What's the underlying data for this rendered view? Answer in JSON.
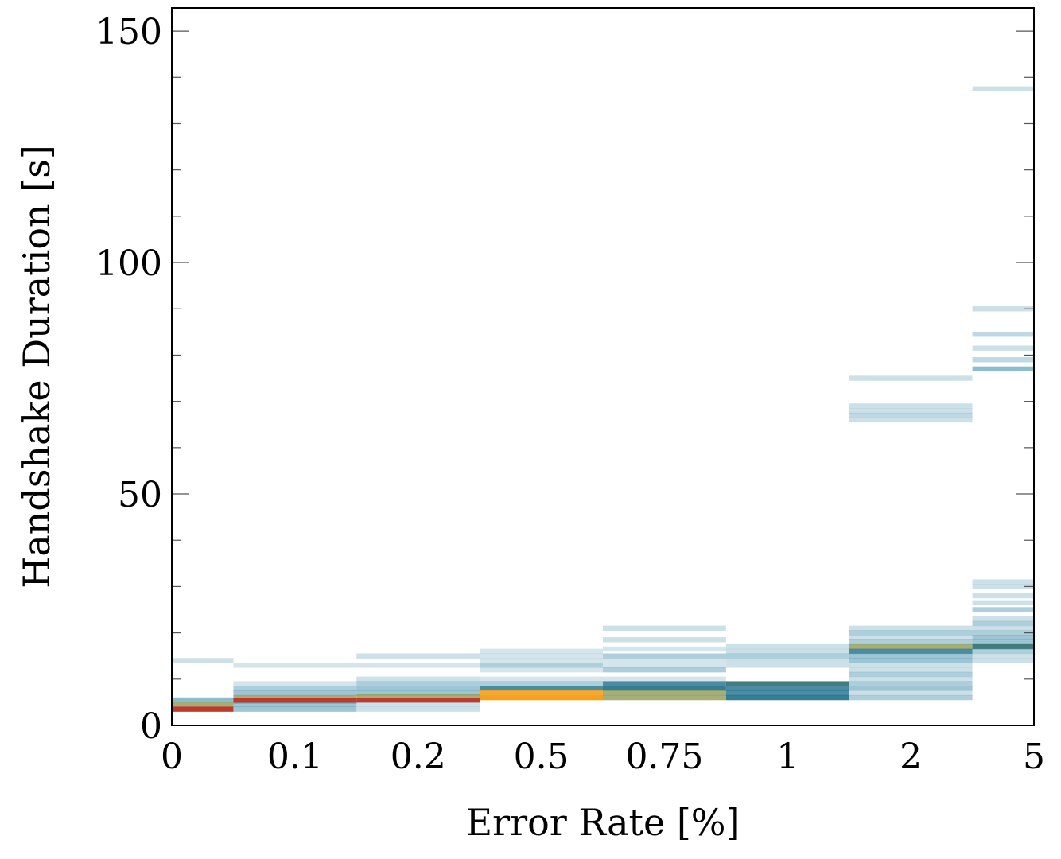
{
  "chart_data": {
    "type": "heatmap",
    "xlabel": "Error Rate [%]",
    "ylabel": "Handshake Duration [s]",
    "categories": [
      "0",
      "0.1",
      "0.2",
      "0.5",
      "0.75",
      "1",
      "2",
      "5"
    ],
    "ylim": [
      0,
      155
    ],
    "yticks": [
      0,
      50,
      100,
      150
    ],
    "grid": false,
    "colors": {
      "light": "#aacbd8",
      "mid": "#5c9fb7",
      "teal": "#1f6f8b",
      "dark_teal": "#2e6e6e",
      "olive": "#8f9a55",
      "orange": "#f5a11c",
      "red": "#c0392b"
    },
    "bands": [
      {
        "cat": 0,
        "y": 14.0,
        "color": "light",
        "opacity": 0.6
      },
      {
        "cat": 0,
        "y": 5.5,
        "color": "mid",
        "opacity": 0.7
      },
      {
        "cat": 0,
        "y": 4.5,
        "color": "olive",
        "opacity": 0.8
      },
      {
        "cat": 0,
        "y": 3.5,
        "color": "red",
        "opacity": 1.0
      },
      {
        "cat": 1,
        "y": 13.0,
        "color": "light",
        "opacity": 0.5
      },
      {
        "cat": 1,
        "y": 9.0,
        "color": "light",
        "opacity": 0.5
      },
      {
        "cat": 1,
        "y": 8.0,
        "color": "mid",
        "opacity": 0.5
      },
      {
        "cat": 1,
        "y": 7.0,
        "color": "mid",
        "opacity": 0.6
      },
      {
        "cat": 1,
        "y": 6.0,
        "color": "olive",
        "opacity": 0.8
      },
      {
        "cat": 1,
        "y": 5.3,
        "color": "red",
        "opacity": 1.0
      },
      {
        "cat": 1,
        "y": 4.5,
        "color": "mid",
        "opacity": 0.6
      },
      {
        "cat": 1,
        "y": 3.5,
        "color": "mid",
        "opacity": 0.6
      },
      {
        "cat": 2,
        "y": 15.0,
        "color": "light",
        "opacity": 0.6
      },
      {
        "cat": 2,
        "y": 13.0,
        "color": "light",
        "opacity": 0.5
      },
      {
        "cat": 2,
        "y": 10.0,
        "color": "light",
        "opacity": 0.6
      },
      {
        "cat": 2,
        "y": 9.0,
        "color": "mid",
        "opacity": 0.5
      },
      {
        "cat": 2,
        "y": 8.0,
        "color": "mid",
        "opacity": 0.6
      },
      {
        "cat": 2,
        "y": 7.0,
        "color": "mid",
        "opacity": 0.6
      },
      {
        "cat": 2,
        "y": 6.2,
        "color": "olive",
        "opacity": 0.8
      },
      {
        "cat": 2,
        "y": 5.4,
        "color": "red",
        "opacity": 1.0
      },
      {
        "cat": 2,
        "y": 4.5,
        "color": "light",
        "opacity": 0.6
      },
      {
        "cat": 2,
        "y": 3.5,
        "color": "light",
        "opacity": 0.6
      },
      {
        "cat": 3,
        "y": 16.0,
        "color": "light",
        "opacity": 0.5
      },
      {
        "cat": 3,
        "y": 15.0,
        "color": "light",
        "opacity": 0.5
      },
      {
        "cat": 3,
        "y": 14.0,
        "color": "light",
        "opacity": 0.5
      },
      {
        "cat": 3,
        "y": 13.0,
        "color": "mid",
        "opacity": 0.5
      },
      {
        "cat": 3,
        "y": 12.0,
        "color": "light",
        "opacity": 0.5
      },
      {
        "cat": 3,
        "y": 10.0,
        "color": "light",
        "opacity": 0.5
      },
      {
        "cat": 3,
        "y": 9.0,
        "color": "mid",
        "opacity": 0.5
      },
      {
        "cat": 3,
        "y": 8.0,
        "color": "teal",
        "opacity": 0.8
      },
      {
        "cat": 3,
        "y": 7.0,
        "color": "orange",
        "opacity": 0.9
      },
      {
        "cat": 3,
        "y": 6.0,
        "color": "orange",
        "opacity": 1.0
      },
      {
        "cat": 4,
        "y": 21.0,
        "color": "light",
        "opacity": 0.6
      },
      {
        "cat": 4,
        "y": 18.5,
        "color": "light",
        "opacity": 0.6
      },
      {
        "cat": 4,
        "y": 16.5,
        "color": "light",
        "opacity": 0.5
      },
      {
        "cat": 4,
        "y": 15.0,
        "color": "mid",
        "opacity": 0.5
      },
      {
        "cat": 4,
        "y": 14.0,
        "color": "light",
        "opacity": 0.5
      },
      {
        "cat": 4,
        "y": 13.0,
        "color": "light",
        "opacity": 0.5
      },
      {
        "cat": 4,
        "y": 12.0,
        "color": "mid",
        "opacity": 0.5
      },
      {
        "cat": 4,
        "y": 10.0,
        "color": "light",
        "opacity": 0.5
      },
      {
        "cat": 4,
        "y": 9.0,
        "color": "teal",
        "opacity": 0.8
      },
      {
        "cat": 4,
        "y": 8.0,
        "color": "teal",
        "opacity": 0.9
      },
      {
        "cat": 4,
        "y": 7.0,
        "color": "olive",
        "opacity": 0.8
      },
      {
        "cat": 4,
        "y": 6.0,
        "color": "olive",
        "opacity": 0.8
      },
      {
        "cat": 5,
        "y": 17.0,
        "color": "light",
        "opacity": 0.6
      },
      {
        "cat": 5,
        "y": 16.0,
        "color": "light",
        "opacity": 0.6
      },
      {
        "cat": 5,
        "y": 15.0,
        "color": "mid",
        "opacity": 0.5
      },
      {
        "cat": 5,
        "y": 14.0,
        "color": "light",
        "opacity": 0.6
      },
      {
        "cat": 5,
        "y": 13.0,
        "color": "light",
        "opacity": 0.6
      },
      {
        "cat": 5,
        "y": 9.0,
        "color": "dark_teal",
        "opacity": 0.9
      },
      {
        "cat": 5,
        "y": 8.0,
        "color": "teal",
        "opacity": 0.8
      },
      {
        "cat": 5,
        "y": 7.0,
        "color": "teal",
        "opacity": 0.8
      },
      {
        "cat": 5,
        "y": 6.0,
        "color": "teal",
        "opacity": 0.9
      },
      {
        "cat": 6,
        "y": 75.0,
        "color": "light",
        "opacity": 0.6
      },
      {
        "cat": 6,
        "y": 69.0,
        "color": "light",
        "opacity": 0.6
      },
      {
        "cat": 6,
        "y": 68.0,
        "color": "light",
        "opacity": 0.6
      },
      {
        "cat": 6,
        "y": 67.0,
        "color": "mid",
        "opacity": 0.4
      },
      {
        "cat": 6,
        "y": 66.0,
        "color": "light",
        "opacity": 0.6
      },
      {
        "cat": 6,
        "y": 21.0,
        "color": "light",
        "opacity": 0.6
      },
      {
        "cat": 6,
        "y": 20.0,
        "color": "mid",
        "opacity": 0.5
      },
      {
        "cat": 6,
        "y": 19.0,
        "color": "light",
        "opacity": 0.6
      },
      {
        "cat": 6,
        "y": 18.0,
        "color": "mid",
        "opacity": 0.5
      },
      {
        "cat": 6,
        "y": 17.0,
        "color": "olive",
        "opacity": 0.8
      },
      {
        "cat": 6,
        "y": 16.0,
        "color": "teal",
        "opacity": 0.8
      },
      {
        "cat": 6,
        "y": 15.0,
        "color": "mid",
        "opacity": 0.6
      },
      {
        "cat": 6,
        "y": 14.0,
        "color": "mid",
        "opacity": 0.6
      },
      {
        "cat": 6,
        "y": 13.0,
        "color": "light",
        "opacity": 0.6
      },
      {
        "cat": 6,
        "y": 12.0,
        "color": "light",
        "opacity": 0.6
      },
      {
        "cat": 6,
        "y": 11.0,
        "color": "mid",
        "opacity": 0.5
      },
      {
        "cat": 6,
        "y": 10.0,
        "color": "light",
        "opacity": 0.6
      },
      {
        "cat": 6,
        "y": 9.0,
        "color": "mid",
        "opacity": 0.5
      },
      {
        "cat": 6,
        "y": 8.0,
        "color": "mid",
        "opacity": 0.6
      },
      {
        "cat": 6,
        "y": 7.0,
        "color": "light",
        "opacity": 0.6
      },
      {
        "cat": 6,
        "y": 6.0,
        "color": "mid",
        "opacity": 0.5
      },
      {
        "cat": 7,
        "y": 137.5,
        "color": "light",
        "opacity": 0.6
      },
      {
        "cat": 7,
        "y": 90.0,
        "color": "light",
        "opacity": 0.6
      },
      {
        "cat": 7,
        "y": 84.5,
        "color": "mid",
        "opacity": 0.4
      },
      {
        "cat": 7,
        "y": 81.5,
        "color": "light",
        "opacity": 0.6
      },
      {
        "cat": 7,
        "y": 79.0,
        "color": "mid",
        "opacity": 0.4
      },
      {
        "cat": 7,
        "y": 77.0,
        "color": "mid",
        "opacity": 0.7
      },
      {
        "cat": 7,
        "y": 31.0,
        "color": "light",
        "opacity": 0.6
      },
      {
        "cat": 7,
        "y": 30.0,
        "color": "light",
        "opacity": 0.6
      },
      {
        "cat": 7,
        "y": 28.0,
        "color": "light",
        "opacity": 0.6
      },
      {
        "cat": 7,
        "y": 26.5,
        "color": "light",
        "opacity": 0.6
      },
      {
        "cat": 7,
        "y": 25.0,
        "color": "mid",
        "opacity": 0.5
      },
      {
        "cat": 7,
        "y": 23.0,
        "color": "light",
        "opacity": 0.6
      },
      {
        "cat": 7,
        "y": 22.0,
        "color": "mid",
        "opacity": 0.5
      },
      {
        "cat": 7,
        "y": 21.0,
        "color": "light",
        "opacity": 0.6
      },
      {
        "cat": 7,
        "y": 20.0,
        "color": "mid",
        "opacity": 0.5
      },
      {
        "cat": 7,
        "y": 19.0,
        "color": "mid",
        "opacity": 0.6
      },
      {
        "cat": 7,
        "y": 18.0,
        "color": "mid",
        "opacity": 0.6
      },
      {
        "cat": 7,
        "y": 17.0,
        "color": "dark_teal",
        "opacity": 0.9
      },
      {
        "cat": 7,
        "y": 16.0,
        "color": "mid",
        "opacity": 0.5
      },
      {
        "cat": 7,
        "y": 15.0,
        "color": "light",
        "opacity": 0.6
      },
      {
        "cat": 7,
        "y": 14.0,
        "color": "light",
        "opacity": 0.6
      }
    ]
  }
}
